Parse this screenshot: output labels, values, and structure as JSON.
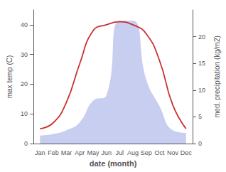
{
  "chart_data": {
    "type": "line",
    "xlabel": "date (month)",
    "ylabel": "max temp (C)",
    "y2label": "med. precipitation (kg/m2)",
    "categories": [
      "Jan",
      "Feb",
      "Mar",
      "Apr",
      "May",
      "Jun",
      "Jul",
      "Aug",
      "Sep",
      "Oct",
      "Nov",
      "Dec"
    ],
    "series": [
      {
        "type": "area",
        "color": "#c8cef0",
        "axis": "y2",
        "values": [
          1.5,
          1.8,
          2.5,
          4,
          8,
          9,
          23,
          23,
          12,
          7,
          2.5,
          2
        ]
      },
      {
        "type": "line",
        "color": "#c83232",
        "values": [
          5,
          7,
          14,
          27,
          38,
          40,
          41,
          40,
          37,
          28,
          13,
          5
        ]
      }
    ],
    "ylim": [
      0,
      45
    ],
    "yticks": [
      0,
      10,
      20,
      30,
      40
    ],
    "y2lim": [
      0,
      25
    ],
    "y2ticks": [
      0,
      5,
      10,
      15,
      20
    ],
    "grid": false
  }
}
